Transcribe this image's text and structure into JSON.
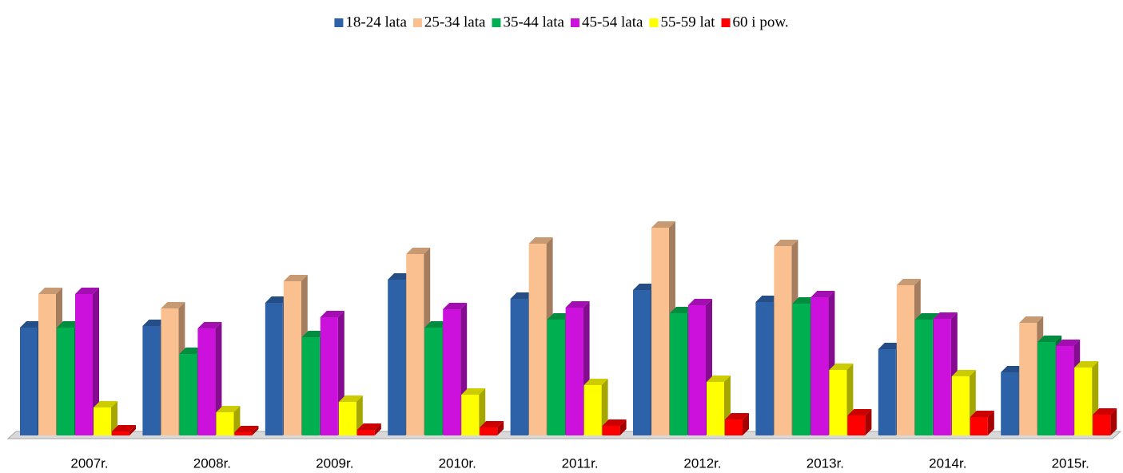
{
  "chart_data": {
    "type": "bar3d",
    "categories": [
      "2007r.",
      "2008r.",
      "2009r.",
      "2010r.",
      "2011r.",
      "2012r.",
      "2013r.",
      "2014r.",
      "2015r."
    ],
    "series": [
      {
        "name": "18-24 lata",
        "color": "#2e62a8",
        "values": [
          135,
          137,
          166,
          195,
          171,
          182,
          167,
          108,
          79
        ]
      },
      {
        "name": "25-34 lata",
        "color": "#fac090",
        "values": [
          177,
          159,
          193,
          227,
          240,
          260,
          237,
          188,
          141
        ]
      },
      {
        "name": "35-44 lata",
        "color": "#00b050",
        "values": [
          135,
          102,
          123,
          135,
          145,
          153,
          165,
          145,
          117
        ]
      },
      {
        "name": "45-54 lata",
        "color": "#cc11dd",
        "values": [
          177,
          134,
          148,
          158,
          160,
          163,
          173,
          146,
          112
        ]
      },
      {
        "name": "55-59 lat",
        "color": "#ffff00",
        "values": [
          35,
          29,
          42,
          51,
          63,
          67,
          82,
          74,
          85
        ]
      },
      {
        "name": "60 i pow.",
        "color": "#ff0000",
        "values": [
          5,
          4,
          7,
          10,
          12,
          20,
          25,
          23,
          26
        ]
      }
    ],
    "ylim": [
      0,
      300
    ],
    "legend": "top"
  }
}
